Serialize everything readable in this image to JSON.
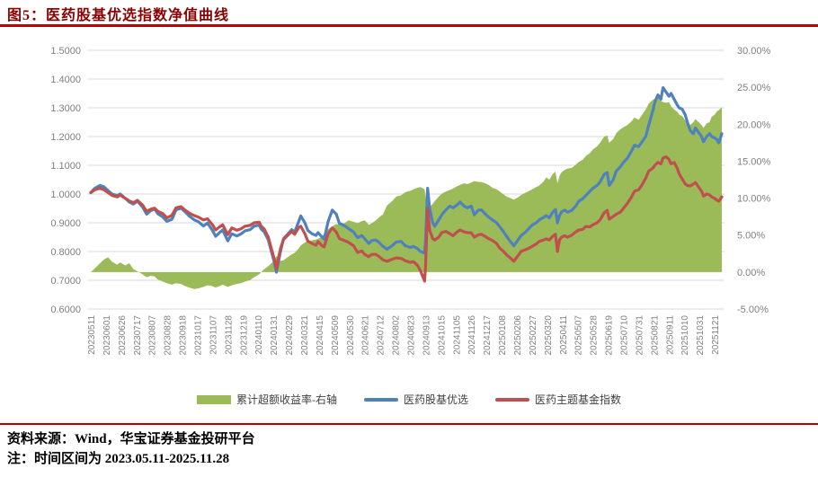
{
  "title": "图5：医药股基优选指数净值曲线",
  "source_line": "资料来源：Wind，华宝证券基金投研平台",
  "note_line": "注：时间区间为 2023.05.11-2025.11.28",
  "colors": {
    "accent_rule": "#C00000",
    "title_text": "#8B0000",
    "grid": "#D9D9D9",
    "axis_text": "#808080",
    "area_green": "#9BBB59",
    "line_blue": "#4F81BD",
    "line_red": "#C0504D"
  },
  "chart_data": {
    "type": "area+line",
    "grid": "horizontal",
    "legend_position": "bottom",
    "left_axis": {
      "ticks": [
        "1.5000",
        "1.4000",
        "1.3000",
        "1.2000",
        "1.1000",
        "1.0000",
        "0.9000",
        "0.8000",
        "0.7000",
        "0.6000"
      ],
      "min": 0.6,
      "max": 1.5
    },
    "right_axis": {
      "ticks": [
        "30.00%",
        "25.00%",
        "20.00%",
        "15.00%",
        "10.00%",
        "5.00%",
        "0.00%",
        "-5.00%"
      ],
      "min": -5,
      "max": 30
    },
    "x_ticks": [
      "20230511",
      "20230601",
      "20230626",
      "20230717",
      "20230807",
      "20230828",
      "20230918",
      "20231017",
      "20231107",
      "20231128",
      "20231219",
      "20240110",
      "20240131",
      "20240229",
      "20240321",
      "20240415",
      "20240509",
      "20240530",
      "20240621",
      "20240712",
      "20240802",
      "20240823",
      "20240913",
      "20241015",
      "20241105",
      "20241126",
      "20241217",
      "20250108",
      "20250206",
      "20250227",
      "20250320",
      "20250411",
      "20250507",
      "20250528",
      "20250619",
      "20250710",
      "20250731",
      "20250821",
      "20250911",
      "20251010",
      "20251031",
      "20251121"
    ],
    "tick_interval_days": 15,
    "x_total_days": 622,
    "series": [
      {
        "name": "累计超额收益率-右轴",
        "type": "area",
        "axis": "right",
        "color": "#9BBB59"
      },
      {
        "name": "医药股基优选",
        "type": "line",
        "axis": "left",
        "color": "#4F81BD"
      },
      {
        "name": "医药主题基金指数",
        "type": "line",
        "axis": "left",
        "color": "#C0504D"
      }
    ],
    "points_format": [
      "day",
      "医药股基优选(left)",
      "医药主题基金指数(left)",
      "累计超额收益率%(right)"
    ],
    "points": [
      [
        0,
        1.005,
        1.005,
        0.0
      ],
      [
        4,
        1.02,
        1.015,
        0.5
      ],
      [
        9,
        1.03,
        1.02,
        1.2
      ],
      [
        13,
        1.025,
        1.015,
        1.7
      ],
      [
        17,
        1.012,
        1.005,
        2.0
      ],
      [
        21,
        1.0,
        0.995,
        1.4
      ],
      [
        26,
        0.995,
        0.99,
        1.0
      ],
      [
        29,
        1.0,
        0.996,
        1.3
      ],
      [
        34,
        0.985,
        0.985,
        0.9
      ],
      [
        38,
        0.972,
        0.976,
        1.2
      ],
      [
        42,
        0.965,
        0.97,
        0.4
      ],
      [
        46,
        0.975,
        0.978,
        0.1
      ],
      [
        51,
        0.955,
        0.962,
        -0.3
      ],
      [
        55,
        0.93,
        0.94,
        -0.7
      ],
      [
        59,
        0.942,
        0.947,
        -0.5
      ],
      [
        63,
        0.948,
        0.951,
        -0.6
      ],
      [
        66,
        0.932,
        0.94,
        -1.0
      ],
      [
        71,
        0.92,
        0.932,
        -1.3
      ],
      [
        75,
        0.905,
        0.917,
        -1.5
      ],
      [
        80,
        0.912,
        0.926,
        -1.7
      ],
      [
        84,
        0.945,
        0.952,
        -1.5
      ],
      [
        89,
        0.951,
        0.956,
        -1.6
      ],
      [
        93,
        0.938,
        0.944,
        -1.9
      ],
      [
        97,
        0.924,
        0.934,
        -2.1
      ],
      [
        102,
        0.91,
        0.925,
        -2.3
      ],
      [
        106,
        0.904,
        0.92,
        -2.2
      ],
      [
        111,
        0.889,
        0.91,
        -2.0
      ],
      [
        115,
        0.899,
        0.914,
        -1.8
      ],
      [
        120,
        0.873,
        0.893,
        -1.9
      ],
      [
        123,
        0.853,
        0.875,
        -2.1
      ],
      [
        127,
        0.866,
        0.886,
        -1.9
      ],
      [
        130,
        0.875,
        0.893,
        -1.7
      ],
      [
        135,
        0.837,
        0.859,
        -2.0
      ],
      [
        139,
        0.862,
        0.882,
        -1.8
      ],
      [
        144,
        0.854,
        0.874,
        -1.6
      ],
      [
        148,
        0.861,
        0.879,
        -1.5
      ],
      [
        152,
        0.872,
        0.888,
        -1.3
      ],
      [
        157,
        0.876,
        0.891,
        -1.1
      ],
      [
        161,
        0.888,
        0.9,
        -0.7
      ],
      [
        166,
        0.892,
        0.902,
        -0.3
      ],
      [
        168,
        0.878,
        0.888,
        0.0
      ],
      [
        171,
        0.868,
        0.878,
        0.4
      ],
      [
        175,
        0.84,
        0.85,
        0.8
      ],
      [
        178,
        0.8,
        0.81,
        1.2
      ],
      [
        181,
        0.762,
        0.772,
        1.6
      ],
      [
        183,
        0.728,
        0.74,
        2.2
      ],
      [
        184,
        0.748,
        0.762,
        1.9
      ],
      [
        187,
        0.8,
        0.81,
        1.5
      ],
      [
        190,
        0.845,
        0.842,
        1.6
      ],
      [
        194,
        0.86,
        0.856,
        2.0
      ],
      [
        198,
        0.876,
        0.87,
        2.4
      ],
      [
        201,
        0.868,
        0.86,
        2.6
      ],
      [
        205,
        0.905,
        0.884,
        3.2
      ],
      [
        207,
        0.924,
        0.888,
        3.6
      ],
      [
        211,
        0.9,
        0.862,
        4.0
      ],
      [
        214,
        0.873,
        0.836,
        4.2
      ],
      [
        218,
        0.862,
        0.828,
        4.3
      ],
      [
        222,
        0.856,
        0.822,
        4.4
      ],
      [
        224,
        0.866,
        0.835,
        4.5
      ],
      [
        228,
        0.85,
        0.82,
        4.8
      ],
      [
        230,
        0.843,
        0.816,
        5.2
      ],
      [
        234,
        0.905,
        0.862,
        5.8
      ],
      [
        238,
        0.944,
        0.882,
        6.2
      ],
      [
        242,
        0.93,
        0.868,
        6.5
      ],
      [
        245,
        0.898,
        0.845,
        6.4
      ],
      [
        250,
        0.89,
        0.838,
        6.6
      ],
      [
        254,
        0.88,
        0.832,
        7.0
      ],
      [
        259,
        0.868,
        0.82,
        6.8
      ],
      [
        263,
        0.848,
        0.797,
        6.6
      ],
      [
        267,
        0.856,
        0.802,
        6.9
      ],
      [
        270,
        0.845,
        0.79,
        7.0
      ],
      [
        274,
        0.828,
        0.782,
        6.4
      ],
      [
        277,
        0.838,
        0.79,
        6.6
      ],
      [
        281,
        0.84,
        0.79,
        7.0
      ],
      [
        284,
        0.832,
        0.783,
        7.4
      ],
      [
        288,
        0.818,
        0.771,
        7.8
      ],
      [
        292,
        0.808,
        0.766,
        9.0
      ],
      [
        297,
        0.82,
        0.773,
        9.6
      ],
      [
        301,
        0.833,
        0.778,
        10.2
      ],
      [
        306,
        0.835,
        0.776,
        10.4
      ],
      [
        310,
        0.82,
        0.768,
        10.8
      ],
      [
        315,
        0.814,
        0.762,
        11.0
      ],
      [
        318,
        0.818,
        0.765,
        11.2
      ],
      [
        322,
        0.81,
        0.752,
        11.4
      ],
      [
        325,
        0.8,
        0.733,
        11.5
      ],
      [
        329,
        0.795,
        0.697,
        11.2
      ],
      [
        330,
        0.84,
        0.75,
        10.2
      ],
      [
        332,
        1.02,
        0.95,
        8.6
      ],
      [
        334,
        0.95,
        0.875,
        8.8
      ],
      [
        337,
        0.9,
        0.845,
        9.2
      ],
      [
        339,
        0.888,
        0.84,
        9.6
      ],
      [
        343,
        0.91,
        0.85,
        10.2
      ],
      [
        346,
        0.928,
        0.866,
        10.6
      ],
      [
        350,
        0.945,
        0.87,
        10.9
      ],
      [
        354,
        0.958,
        0.862,
        11.1
      ],
      [
        357,
        0.952,
        0.855,
        11.3
      ],
      [
        361,
        0.962,
        0.868,
        11.6
      ],
      [
        364,
        0.972,
        0.875,
        11.8
      ],
      [
        368,
        0.958,
        0.868,
        12.0
      ],
      [
        371,
        0.952,
        0.866,
        11.9
      ],
      [
        375,
        0.958,
        0.865,
        12.1
      ],
      [
        378,
        0.928,
        0.85,
        12.3
      ],
      [
        382,
        0.944,
        0.858,
        12.2
      ],
      [
        385,
        0.945,
        0.86,
        12.2
      ],
      [
        389,
        0.93,
        0.852,
        12.0
      ],
      [
        392,
        0.92,
        0.845,
        11.8
      ],
      [
        396,
        0.91,
        0.838,
        11.4
      ],
      [
        400,
        0.9,
        0.828,
        11.2
      ],
      [
        403,
        0.887,
        0.812,
        10.9
      ],
      [
        407,
        0.868,
        0.8,
        10.5
      ],
      [
        410,
        0.852,
        0.788,
        10.2
      ],
      [
        414,
        0.833,
        0.776,
        10.0
      ],
      [
        417,
        0.82,
        0.766,
        9.8
      ],
      [
        421,
        0.84,
        0.785,
        10.1
      ],
      [
        424,
        0.855,
        0.8,
        10.4
      ],
      [
        428,
        0.866,
        0.806,
        10.7
      ],
      [
        431,
        0.877,
        0.81,
        10.9
      ],
      [
        435,
        0.892,
        0.818,
        11.2
      ],
      [
        439,
        0.9,
        0.826,
        11.5
      ],
      [
        442,
        0.91,
        0.835,
        11.7
      ],
      [
        446,
        0.918,
        0.84,
        12.2
      ],
      [
        449,
        0.925,
        0.844,
        12.8
      ],
      [
        452,
        0.917,
        0.84,
        12.5
      ],
      [
        455,
        0.935,
        0.852,
        13.2
      ],
      [
        458,
        0.946,
        0.86,
        13.6
      ],
      [
        460,
        0.9,
        0.8,
        12.0
      ],
      [
        462,
        0.925,
        0.84,
        13.0
      ],
      [
        464,
        0.938,
        0.85,
        13.5
      ],
      [
        467,
        0.944,
        0.855,
        13.8
      ],
      [
        470,
        0.937,
        0.85,
        14.0
      ],
      [
        474,
        0.943,
        0.857,
        14.1
      ],
      [
        478,
        0.958,
        0.868,
        14.5
      ],
      [
        481,
        0.975,
        0.875,
        14.9
      ],
      [
        485,
        0.984,
        0.877,
        15.2
      ],
      [
        488,
        0.995,
        0.887,
        15.7
      ],
      [
        492,
        1.01,
        0.886,
        16.1
      ],
      [
        495,
        1.02,
        0.893,
        16.6
      ],
      [
        499,
        1.03,
        0.9,
        17.0
      ],
      [
        502,
        1.042,
        0.91,
        17.5
      ],
      [
        506,
        1.068,
        0.935,
        18.3
      ],
      [
        509,
        1.075,
        0.943,
        18.5
      ],
      [
        511,
        1.03,
        0.913,
        17.5
      ],
      [
        515,
        1.05,
        0.922,
        18.0
      ],
      [
        518,
        1.08,
        0.93,
        18.8
      ],
      [
        522,
        1.095,
        0.937,
        19.3
      ],
      [
        525,
        1.11,
        0.95,
        19.6
      ],
      [
        529,
        1.125,
        0.968,
        19.9
      ],
      [
        533,
        1.15,
        0.99,
        20.4
      ],
      [
        536,
        1.17,
        1.01,
        20.9
      ],
      [
        540,
        1.165,
        1.015,
        20.6
      ],
      [
        543,
        1.18,
        1.03,
        21.2
      ],
      [
        547,
        1.2,
        1.055,
        22.0
      ],
      [
        550,
        1.24,
        1.08,
        22.8
      ],
      [
        554,
        1.29,
        1.09,
        23.3
      ],
      [
        556,
        1.32,
        1.1,
        23.5
      ],
      [
        559,
        1.345,
        1.11,
        23.7
      ],
      [
        562,
        1.33,
        1.105,
        23.2
      ],
      [
        564,
        1.37,
        1.125,
        23.0
      ],
      [
        567,
        1.355,
        1.13,
        22.9
      ],
      [
        570,
        1.34,
        1.12,
        23.0
      ],
      [
        572,
        1.35,
        1.105,
        22.4
      ],
      [
        575,
        1.33,
        1.11,
        22.0
      ],
      [
        578,
        1.31,
        1.09,
        21.7
      ],
      [
        580,
        1.3,
        1.07,
        21.3
      ],
      [
        583,
        1.295,
        1.052,
        21.1
      ],
      [
        586,
        1.275,
        1.035,
        20.5
      ],
      [
        588,
        1.25,
        1.03,
        20.2
      ],
      [
        591,
        1.22,
        1.028,
        19.9
      ],
      [
        594,
        1.21,
        1.035,
        20.3
      ],
      [
        596,
        1.23,
        1.04,
        20.7
      ],
      [
        599,
        1.215,
        1.025,
        20.3
      ],
      [
        602,
        1.2,
        1.01,
        19.9
      ],
      [
        604,
        1.182,
        0.993,
        19.5
      ],
      [
        607,
        1.2,
        1.0,
        20.1
      ],
      [
        610,
        1.21,
        0.997,
        20.3
      ],
      [
        612,
        1.2,
        0.99,
        21.0
      ],
      [
        615,
        1.195,
        0.985,
        21.3
      ],
      [
        617,
        1.19,
        0.979,
        21.7
      ],
      [
        619,
        1.178,
        0.975,
        21.9
      ],
      [
        622,
        1.21,
        0.99,
        22.3
      ]
    ]
  }
}
